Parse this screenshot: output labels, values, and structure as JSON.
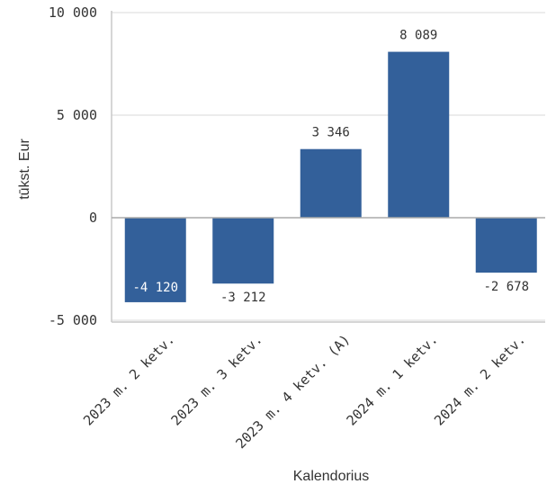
{
  "chart_data": {
    "type": "bar",
    "categories": [
      "2023 m. 2 ketv.",
      "2023 m. 3 ketv.",
      "2023 m. 4 ketv. (A)",
      "2024 m. 1 ketv.",
      "2024 m. 2 ketv."
    ],
    "values": [
      -4120,
      -3212,
      3346,
      8089,
      -2678
    ],
    "value_labels": [
      "-4 120",
      "-3 212",
      "3 346",
      "8 089",
      "-2 678"
    ],
    "xlabel": "Kalendorius",
    "ylabel": "tūkst. Eur",
    "ylim": [
      -5000,
      10000
    ],
    "yticks": [
      -5000,
      0,
      5000,
      10000
    ],
    "ytick_labels": [
      "-5 000",
      "0",
      "5 000",
      "10 000"
    ],
    "grid": true,
    "colors": {
      "bar": "#33609a",
      "grid": "#d9d9d9",
      "axis": "#c8c8c8",
      "zero_line": "#aaaaaa"
    }
  }
}
